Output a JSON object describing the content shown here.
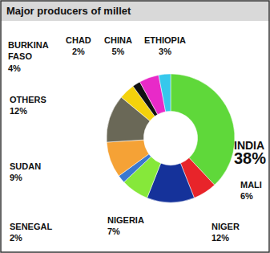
{
  "chart_data": {
    "type": "pie",
    "title": "Major producers of millet",
    "categories": [
      "INDIA",
      "MALI",
      "NIGER",
      "NIGERIA",
      "SENEGAL",
      "SUDAN",
      "OTHERS",
      "BURKINA FASO",
      "CHAD",
      "CHINA",
      "ETHIOPIA"
    ],
    "values": [
      38,
      6,
      12,
      7,
      2,
      9,
      12,
      4,
      2,
      5,
      3
    ],
    "value_labels": [
      "38%",
      "6%",
      "12%",
      "7%",
      "2%",
      "9%",
      "12%",
      "4%",
      "2%",
      "5%",
      "3%"
    ],
    "colors": [
      "#5fd83a",
      "#e8242a",
      "#15329a",
      "#86e83a",
      "#3a78d0",
      "#f5a236",
      "#6a6857",
      "#f4d20c",
      "#111111",
      "#e82ac8",
      "#36c8ec"
    ],
    "data_labels": true
  }
}
